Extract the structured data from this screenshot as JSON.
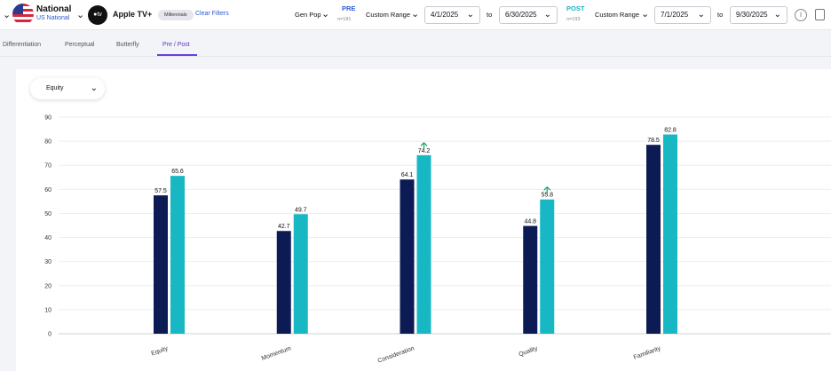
{
  "header": {
    "region_name": "National",
    "region_sub": "US National",
    "brand_logo_text": "●tv",
    "brand_name": "Apple TV+",
    "chip": "Millennials",
    "clear_filters": "Clear Filters",
    "population": "Gen Pop",
    "pre_label": "PRE",
    "pre_n": "n=181",
    "pre_range_type": "Custom Range",
    "pre_start": "4/1/2025",
    "pre_to": "to",
    "pre_end": "6/30/2025",
    "post_label": "POST",
    "post_n": "n=193",
    "post_range_type": "Custom Range",
    "post_start": "7/1/2025",
    "post_to": "to",
    "post_end": "9/30/2025",
    "colors": {
      "pre": "#2f5bd3",
      "post": "#17b3c6"
    }
  },
  "tabs": [
    {
      "label": "Differentiation"
    },
    {
      "label": "Perceptual"
    },
    {
      "label": "Butterfly"
    },
    {
      "label": "Pre / Post"
    }
  ],
  "metric_select": {
    "value": "Equity"
  },
  "chart_data": {
    "type": "bar",
    "categories": [
      "Equity",
      "Momentum",
      "Consideration",
      "Quality",
      "Familiarity"
    ],
    "series": [
      {
        "values": [
          57.5,
          42.7,
          64.1,
          44.8,
          78.5
        ],
        "color": "#0d1b54"
      },
      {
        "values": [
          65.6,
          49.7,
          74.2,
          55.8,
          82.8
        ],
        "color": "#17b8c4"
      }
    ],
    "significant_increase": [
      false,
      false,
      true,
      true,
      false
    ],
    "ylim": [
      0,
      90
    ],
    "yticks": [
      0,
      10,
      20,
      30,
      40,
      50,
      60,
      70,
      80,
      90
    ],
    "grid": true
  }
}
